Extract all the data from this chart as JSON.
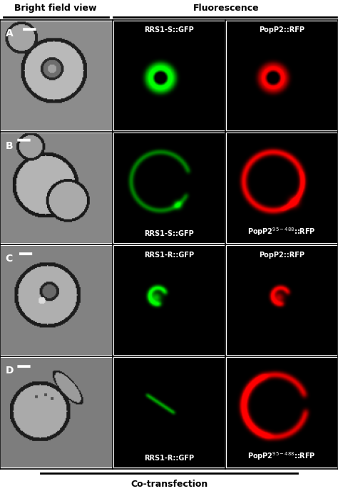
{
  "rows": [
    "A",
    "B",
    "C",
    "D"
  ],
  "col_header_left": "Bright field view",
  "col_header_right": "Fluorescence",
  "footer_label": "Co-transfection",
  "row_labels_green": [
    "RRS1-S::GFP",
    "RRS1-S::GFP",
    "RRS1-R::GFP",
    "RRS1-R::GFP"
  ],
  "row_labels_red_plain": [
    "PopP2::RFP",
    "PopP2$^{95-488}$::RFP",
    "PopP2::RFP",
    "PopP2$^{95-488}$::RFP"
  ],
  "header_left": "Bright field view",
  "header_right": "Fluorescence",
  "footer": "Co-transfection",
  "bg_gray": 140,
  "cell_color": 200,
  "label_fontsize": 7,
  "header_fontsize": 9,
  "footer_fontsize": 9
}
